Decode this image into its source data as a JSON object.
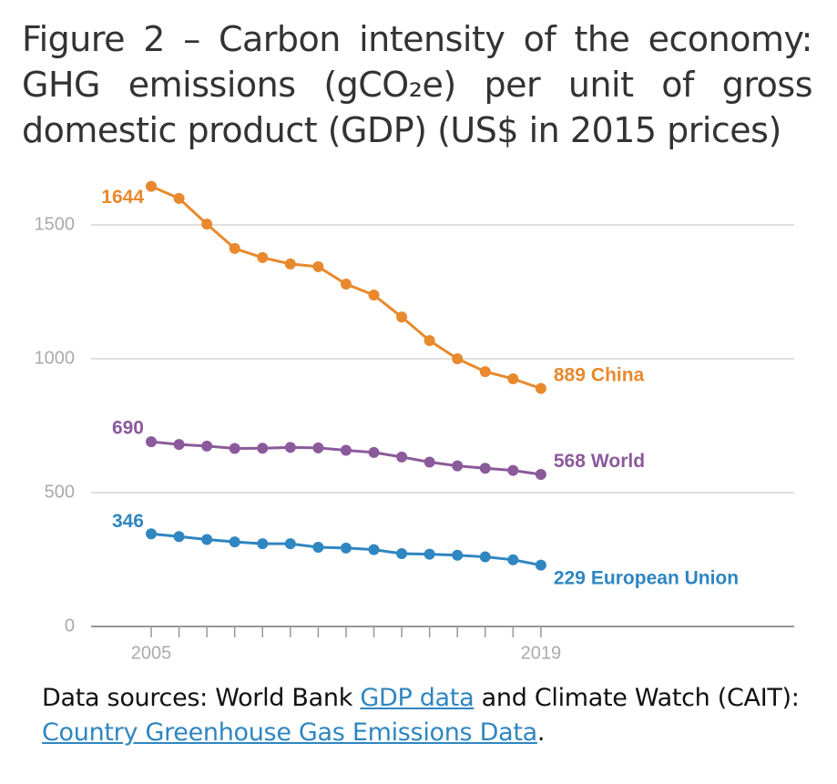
{
  "chart_data": {
    "type": "line",
    "title": "Figure 2 – Carbon intensity of the economy: GHG emissions (gCO₂e) per unit of gross domestic product (GDP) (US$ in 2015 prices)",
    "x": [
      2005,
      2006,
      2007,
      2008,
      2009,
      2010,
      2011,
      2012,
      2013,
      2014,
      2015,
      2016,
      2017,
      2018,
      2019
    ],
    "series": [
      {
        "name": "China",
        "color": "#e8892e",
        "values": [
          1644,
          1599,
          1503,
          1412,
          1378,
          1354,
          1344,
          1279,
          1238,
          1156,
          1068,
          1000,
          952,
          925,
          889
        ]
      },
      {
        "name": "World",
        "color": "#8b5a9b",
        "values": [
          690,
          680,
          674,
          665,
          666,
          669,
          667,
          658,
          650,
          633,
          614,
          600,
          591,
          583,
          568
        ]
      },
      {
        "name": "European Union",
        "color": "#2f86c0",
        "values": [
          346,
          336,
          325,
          316,
          309,
          309,
          296,
          293,
          287,
          272,
          270,
          266,
          260,
          249,
          229
        ]
      }
    ],
    "xlim": [
      2002.84,
      2028.1
    ],
    "xticks": [
      2005,
      2019
    ],
    "ylim": [
      0,
      1750
    ],
    "yticks": [
      0,
      500,
      1000,
      1500
    ],
    "grid": true
  },
  "source": {
    "prefix": "Data sources: World Bank",
    "link1": "GDP data",
    "middle": "and Climate Watch (CAIT):",
    "link2": "Country Greenhouse Gas Emissions Data",
    "suffix": "."
  }
}
